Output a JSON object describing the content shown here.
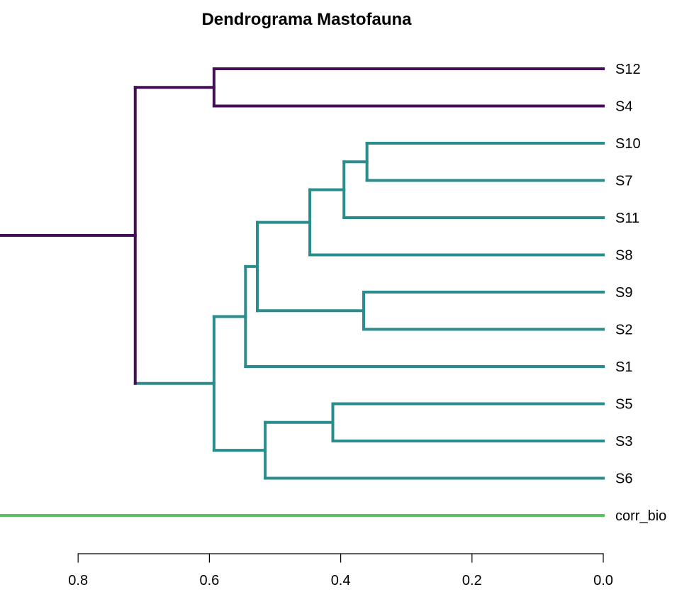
{
  "chart_data": {
    "type": "dendrogram",
    "title": "Dendrograma Mastofauna",
    "xlabel": "",
    "ylabel": "",
    "orientation": "horizontal",
    "xlim": [
      0.9,
      0.0
    ],
    "x_ticks": [
      0.8,
      0.6,
      0.4,
      0.2,
      0.0
    ],
    "x_tick_labels": [
      "0.8",
      "0.6",
      "0.4",
      "0.2",
      "0.0"
    ],
    "leaves": [
      "S12",
      "S4",
      "S10",
      "S7",
      "S11",
      "S8",
      "S9",
      "S2",
      "S1",
      "S5",
      "S3",
      "S6",
      "corr_bio"
    ],
    "clusters": [
      {
        "members": [
          "S10",
          "S7"
        ],
        "height": 0.36,
        "color": "#2A8C8C"
      },
      {
        "members": [
          "S9",
          "S2"
        ],
        "height": 0.365,
        "color": "#2A8C8C"
      },
      {
        "members": [
          "S10",
          "S7",
          "S11"
        ],
        "height": 0.395,
        "color": "#2A8C8C"
      },
      {
        "members": [
          "S5",
          "S3"
        ],
        "height": 0.412,
        "color": "#2A8C8C"
      },
      {
        "members": [
          "S10",
          "S7",
          "S11",
          "S8"
        ],
        "height": 0.447,
        "color": "#2A8C8C"
      },
      {
        "members": [
          "S5",
          "S3",
          "S6"
        ],
        "height": 0.515,
        "color": "#2A8C8C"
      },
      {
        "members": [
          "S10",
          "S7",
          "S11",
          "S8",
          "S9",
          "S2"
        ],
        "height": 0.527,
        "color": "#2A8C8C"
      },
      {
        "members": [
          "S10",
          "S7",
          "S11",
          "S8",
          "S9",
          "S2",
          "S1"
        ],
        "height": 0.545,
        "color": "#2A8C8C"
      },
      {
        "members": [
          "S12",
          "S4"
        ],
        "height": 0.593,
        "color": "#440F57"
      },
      {
        "members": [
          "S10",
          "S7",
          "S11",
          "S8",
          "S9",
          "S2",
          "S1",
          "S5",
          "S3",
          "S6"
        ],
        "height": 0.593,
        "color": "#2A8C8C"
      },
      {
        "members": [
          "S12",
          "S4",
          "S10",
          "S7",
          "S11",
          "S8",
          "S9",
          "S2",
          "S1",
          "S5",
          "S3",
          "S6"
        ],
        "height": 0.713,
        "color": "#440F57"
      },
      {
        "members": [
          "S12",
          "S4",
          "S10",
          "S7",
          "S11",
          "S8",
          "S9",
          "S2",
          "S1",
          "S5",
          "S3",
          "S6",
          "corr_bio"
        ],
        "height": 0.955,
        "color": "#000000"
      }
    ],
    "leaf_colors": {
      "S12": "#440F57",
      "S4": "#440F57",
      "S10": "#2A8C8C",
      "S7": "#2A8C8C",
      "S11": "#2A8C8C",
      "S8": "#2A8C8C",
      "S9": "#2A8C8C",
      "S2": "#2A8C8C",
      "S1": "#2A8C8C",
      "S5": "#2A8C8C",
      "S3": "#2A8C8C",
      "S6": "#2A8C8C",
      "corr_bio": "#5DC15F"
    },
    "root_branch_colors": {
      "upper": "#000000",
      "lower": "#5DC15F"
    },
    "grid": false
  }
}
